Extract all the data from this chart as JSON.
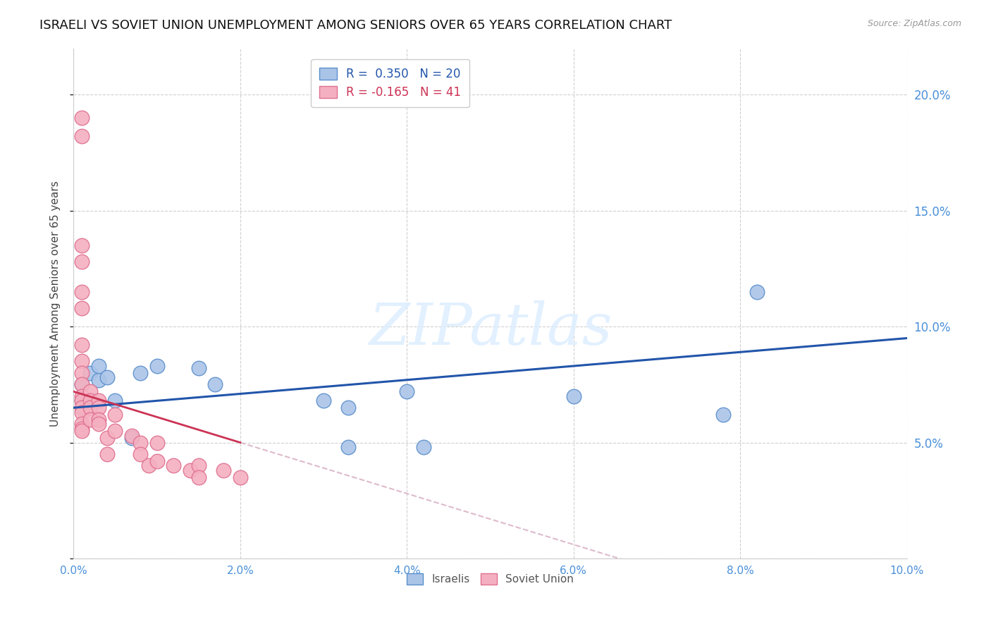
{
  "title": "ISRAELI VS SOVIET UNION UNEMPLOYMENT AMONG SENIORS OVER 65 YEARS CORRELATION CHART",
  "source": "Source: ZipAtlas.com",
  "ylabel": "Unemployment Among Seniors over 65 years",
  "xlim": [
    0.0,
    0.1
  ],
  "ylim": [
    0.0,
    0.22
  ],
  "xticks": [
    0.0,
    0.02,
    0.04,
    0.06,
    0.08,
    0.1
  ],
  "yticks": [
    0.0,
    0.05,
    0.1,
    0.15,
    0.2
  ],
  "right_ytick_labels": [
    "5.0%",
    "10.0%",
    "15.0%",
    "20.0%"
  ],
  "right_yticks": [
    0.05,
    0.1,
    0.15,
    0.2
  ],
  "xtick_labels": [
    "0.0%",
    "2.0%",
    "4.0%",
    "6.0%",
    "8.0%",
    "10.0%"
  ],
  "israelis_x": [
    0.001,
    0.001,
    0.002,
    0.003,
    0.003,
    0.004,
    0.005,
    0.007,
    0.008,
    0.01,
    0.015,
    0.017,
    0.03,
    0.033,
    0.033,
    0.04,
    0.042,
    0.06,
    0.078,
    0.082
  ],
  "israelis_y": [
    0.068,
    0.075,
    0.08,
    0.077,
    0.083,
    0.078,
    0.068,
    0.052,
    0.08,
    0.083,
    0.082,
    0.075,
    0.068,
    0.065,
    0.048,
    0.072,
    0.048,
    0.07,
    0.062,
    0.115
  ],
  "soviet_x": [
    0.001,
    0.001,
    0.001,
    0.001,
    0.001,
    0.001,
    0.001,
    0.001,
    0.001,
    0.001,
    0.001,
    0.001,
    0.001,
    0.001,
    0.001,
    0.001,
    0.001,
    0.002,
    0.002,
    0.002,
    0.002,
    0.003,
    0.003,
    0.003,
    0.003,
    0.004,
    0.004,
    0.005,
    0.005,
    0.007,
    0.008,
    0.008,
    0.009,
    0.01,
    0.01,
    0.012,
    0.014,
    0.015,
    0.015,
    0.018,
    0.02
  ],
  "soviet_y": [
    0.19,
    0.182,
    0.135,
    0.128,
    0.115,
    0.108,
    0.092,
    0.085,
    0.08,
    0.075,
    0.07,
    0.068,
    0.065,
    0.063,
    0.058,
    0.056,
    0.055,
    0.072,
    0.068,
    0.065,
    0.06,
    0.068,
    0.065,
    0.06,
    0.058,
    0.052,
    0.045,
    0.062,
    0.055,
    0.053,
    0.05,
    0.045,
    0.04,
    0.05,
    0.042,
    0.04,
    0.038,
    0.04,
    0.035,
    0.038,
    0.035
  ],
  "blue_scatter_color": "#aac4e8",
  "blue_edge_color": "#5b8fcc",
  "pink_scatter_color": "#f4b0c0",
  "pink_edge_color": "#e07090",
  "blue_line_color": "#2255aa",
  "pink_line_color": "#cc3355",
  "pink_dashed_color": "#ddbbcc",
  "axis_tick_color": "#4a90d9",
  "grid_color": "#d0d0d0",
  "watermark_color": "#ddeeff",
  "background_color": "#ffffff",
  "title_fontsize": 13,
  "tick_fontsize": 11,
  "ylabel_fontsize": 11,
  "legend_fontsize": 12,
  "watermark_text": "ZIPatlas"
}
